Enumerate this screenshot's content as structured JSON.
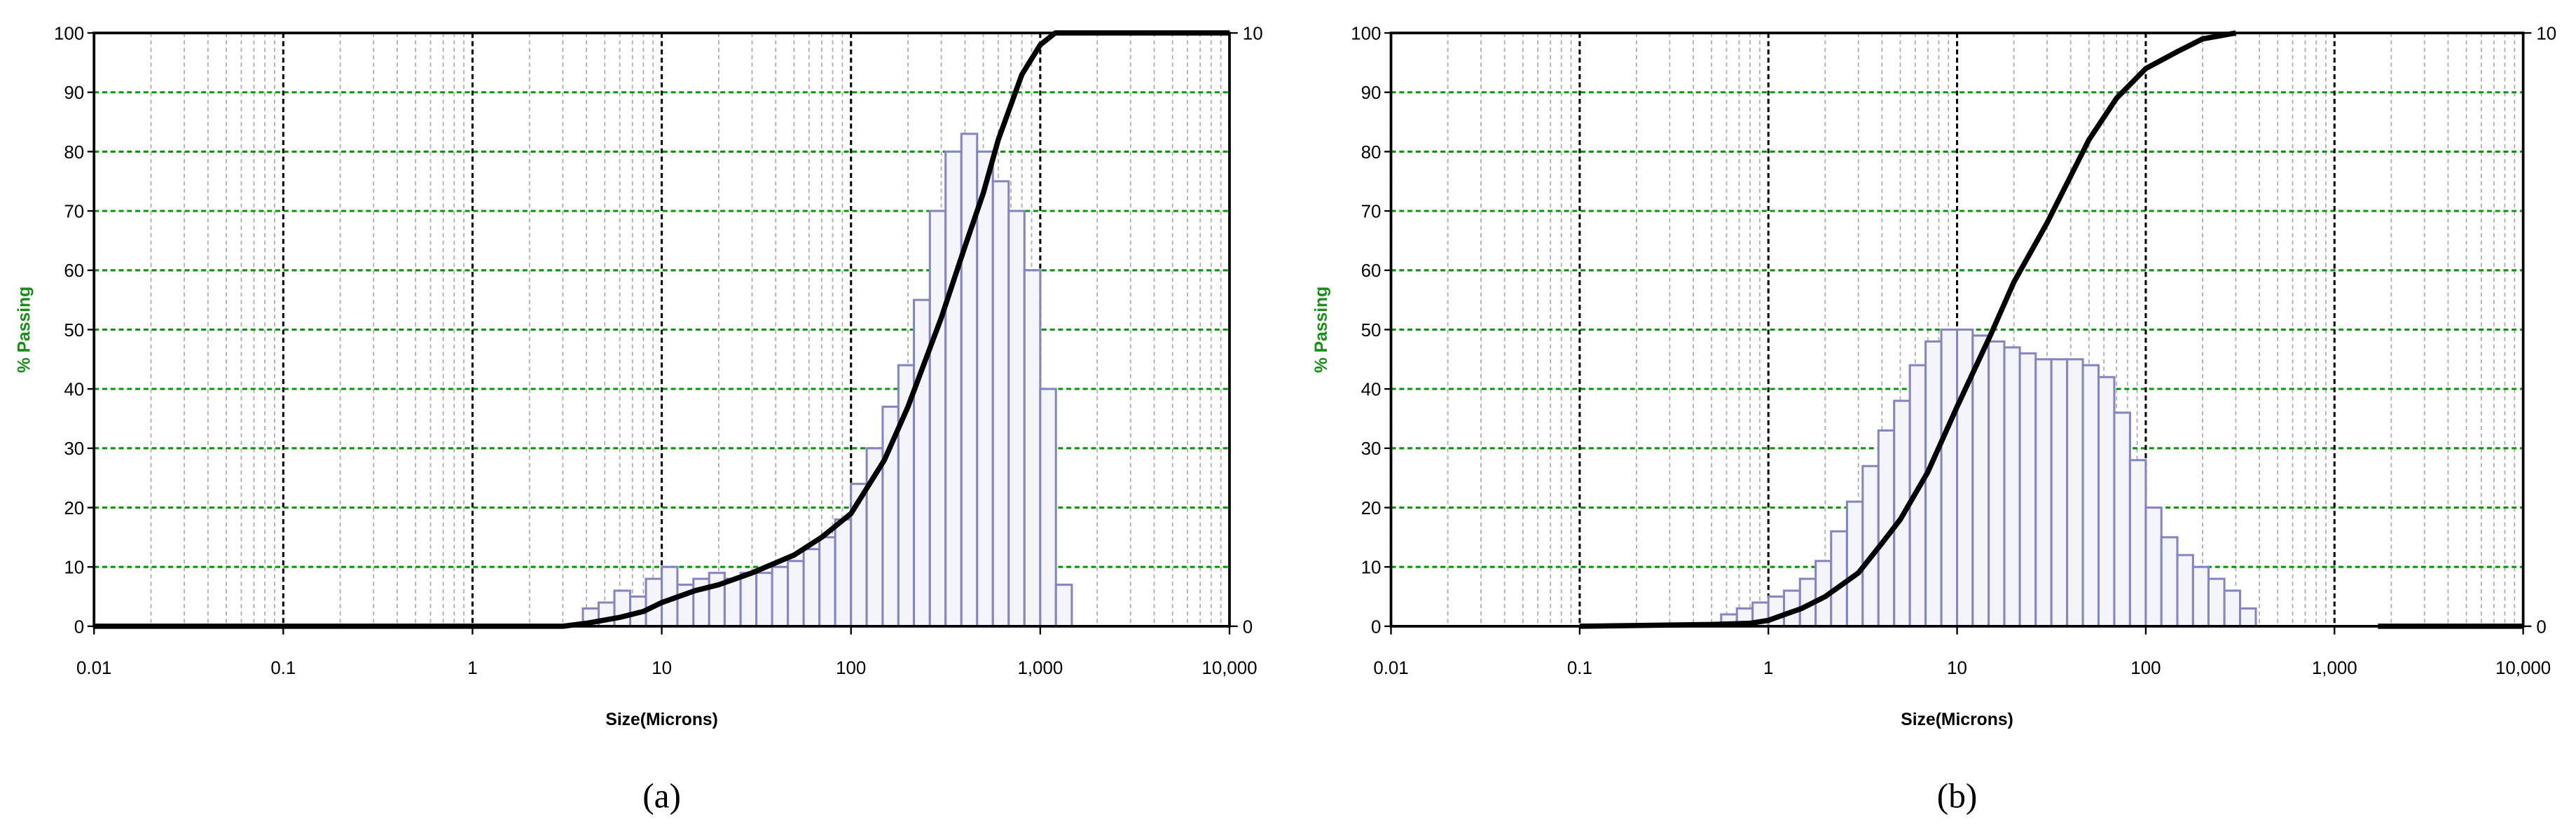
{
  "chart_data": [
    {
      "type": "histogram",
      "caption": "(a)",
      "x_label": "Size(Microns)",
      "y_label": "% Passing",
      "xscale": "log",
      "xlim": [
        0.01,
        10000
      ],
      "xticks": [
        0.01,
        0.1,
        1,
        10,
        100,
        {
          "value": 1000,
          "label": "1,000"
        },
        {
          "value": 10000,
          "label": "10,000"
        }
      ],
      "ylim": [
        0,
        100
      ],
      "yticks": [
        0,
        10,
        20,
        30,
        40,
        50,
        60,
        70,
        80,
        90,
        100
      ],
      "y2lim": [
        0,
        10
      ],
      "y2ticks": [
        0,
        10
      ],
      "grid": true,
      "bins": [
        3.83,
        4.64,
        5.62,
        6.81,
        8.25,
        10,
        12.1,
        14.7,
        17.8,
        21.5,
        26.1,
        31.6,
        38.3,
        46.4,
        56.2,
        68.1,
        82.5,
        100,
        121,
        147,
        178,
        215,
        261,
        316,
        383,
        464,
        562,
        681,
        825,
        1000,
        1210,
        1468
      ],
      "values": [
        0.3,
        0.4,
        0.6,
        0.5,
        0.8,
        1.0,
        0.7,
        0.8,
        0.9,
        0.8,
        0.9,
        0.9,
        1.0,
        1.1,
        1.3,
        1.5,
        1.8,
        2.4,
        3.0,
        3.7,
        4.4,
        5.5,
        7.0,
        8.0,
        8.3,
        8.0,
        7.5,
        7.0,
        6.0,
        4.0,
        0.7
      ],
      "axis": "y2",
      "color": "#8585c0",
      "line": {
        "color": "#000000",
        "x": [
          0.01,
          3,
          4,
          6,
          8,
          10,
          15,
          20,
          30,
          50,
          70,
          100,
          150,
          200,
          300,
          400,
          500,
          600,
          800,
          1000,
          1200,
          10000
        ],
        "values": [
          0,
          0,
          0.5,
          1.5,
          2.5,
          4,
          6,
          7,
          9,
          12,
          15,
          19,
          28,
          37,
          52,
          64,
          73,
          82,
          93,
          98,
          100,
          100
        ]
      }
    },
    {
      "type": "histogram",
      "caption": "(b)",
      "x_label": "Size(Microns)",
      "y_label": "% Passing",
      "xscale": "log",
      "xlim": [
        0.01,
        10000
      ],
      "xticks": [
        0.01,
        0.1,
        1,
        10,
        100,
        {
          "value": 1000,
          "label": "1,000"
        },
        {
          "value": 10000,
          "label": "10,000"
        }
      ],
      "ylim": [
        0,
        100
      ],
      "yticks": [
        0,
        10,
        20,
        30,
        40,
        50,
        60,
        70,
        80,
        90,
        100
      ],
      "y2lim": [
        0,
        10
      ],
      "y2ticks": [
        0,
        10
      ],
      "grid": true,
      "bins": [
        0.562,
        0.681,
        0.825,
        1,
        1.21,
        1.47,
        1.78,
        2.15,
        2.61,
        3.16,
        3.83,
        4.64,
        5.62,
        6.81,
        8.25,
        10,
        12.1,
        14.7,
        17.8,
        21.5,
        26.1,
        31.6,
        38.3,
        46.4,
        56.2,
        68.1,
        82.5,
        100,
        121,
        147,
        178,
        215,
        261,
        316,
        383
      ],
      "values": [
        0.2,
        0.3,
        0.4,
        0.5,
        0.6,
        0.8,
        1.1,
        1.6,
        2.1,
        2.7,
        3.3,
        3.8,
        4.4,
        4.8,
        5.0,
        5.0,
        4.9,
        4.8,
        4.7,
        4.6,
        4.5,
        4.5,
        4.5,
        4.4,
        4.2,
        3.6,
        2.8,
        2.0,
        1.5,
        1.2,
        1.0,
        0.8,
        0.6,
        0.3
      ],
      "axis": "y2",
      "color": "#8585c0",
      "line": {
        "color": "#000000",
        "x": [
          0.1,
          0.5,
          0.8,
          1,
          1.5,
          2,
          3,
          4,
          5,
          7,
          10,
          15,
          20,
          30,
          50,
          70,
          100,
          150,
          200,
          300,
          1000,
          1700,
          10000
        ],
        "values": [
          0,
          0.3,
          0.5,
          1,
          3,
          5,
          9,
          14,
          18,
          26,
          37,
          49,
          58,
          68,
          82,
          89,
          94,
          97,
          99,
          100,
          null,
          0,
          0
        ]
      }
    }
  ]
}
